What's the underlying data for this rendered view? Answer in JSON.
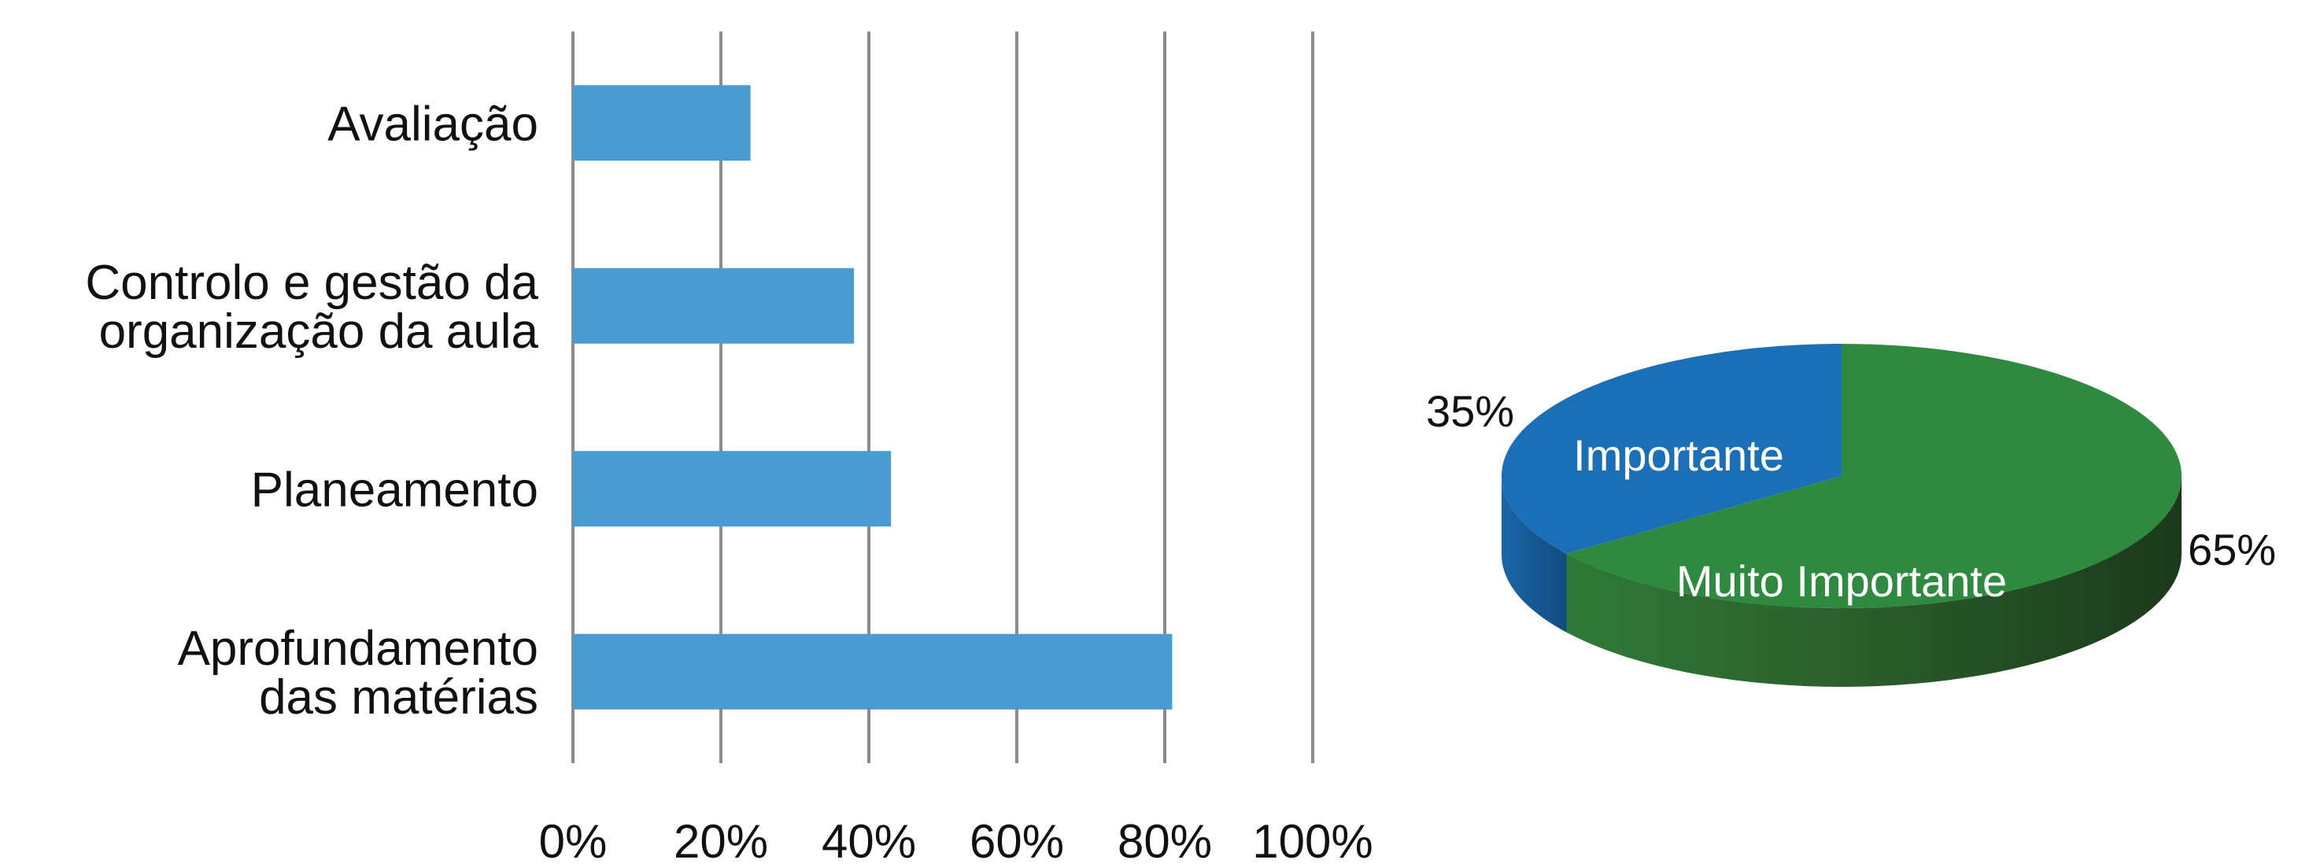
{
  "chart_data": [
    {
      "type": "bar",
      "orientation": "horizontal",
      "categories": [
        [
          "Avaliação"
        ],
        [
          "Controlo e gestão da",
          "organização da aula"
        ],
        [
          "Planeamento"
        ],
        [
          "Aprofundamento",
          "das matérias"
        ]
      ],
      "values": [
        24,
        38,
        43,
        81
      ],
      "x_tick_labels": [
        "0%",
        "20%",
        "40%",
        "60%",
        "80%",
        "100%"
      ],
      "xlim": [
        0,
        100
      ],
      "grid": true,
      "title": "",
      "xlabel": "",
      "ylabel": "",
      "bar_color": "#4a9ad4",
      "grid_color": "#8c8c8c"
    },
    {
      "type": "pie",
      "style": "3d",
      "slices": [
        {
          "label": "Importante",
          "value": 35,
          "value_label": "35%",
          "color": "#1a6fb7"
        },
        {
          "label": "Muito Importante",
          "value": 65,
          "value_label": "65%",
          "color": "#2e8a3e"
        }
      ],
      "title": ""
    }
  ]
}
